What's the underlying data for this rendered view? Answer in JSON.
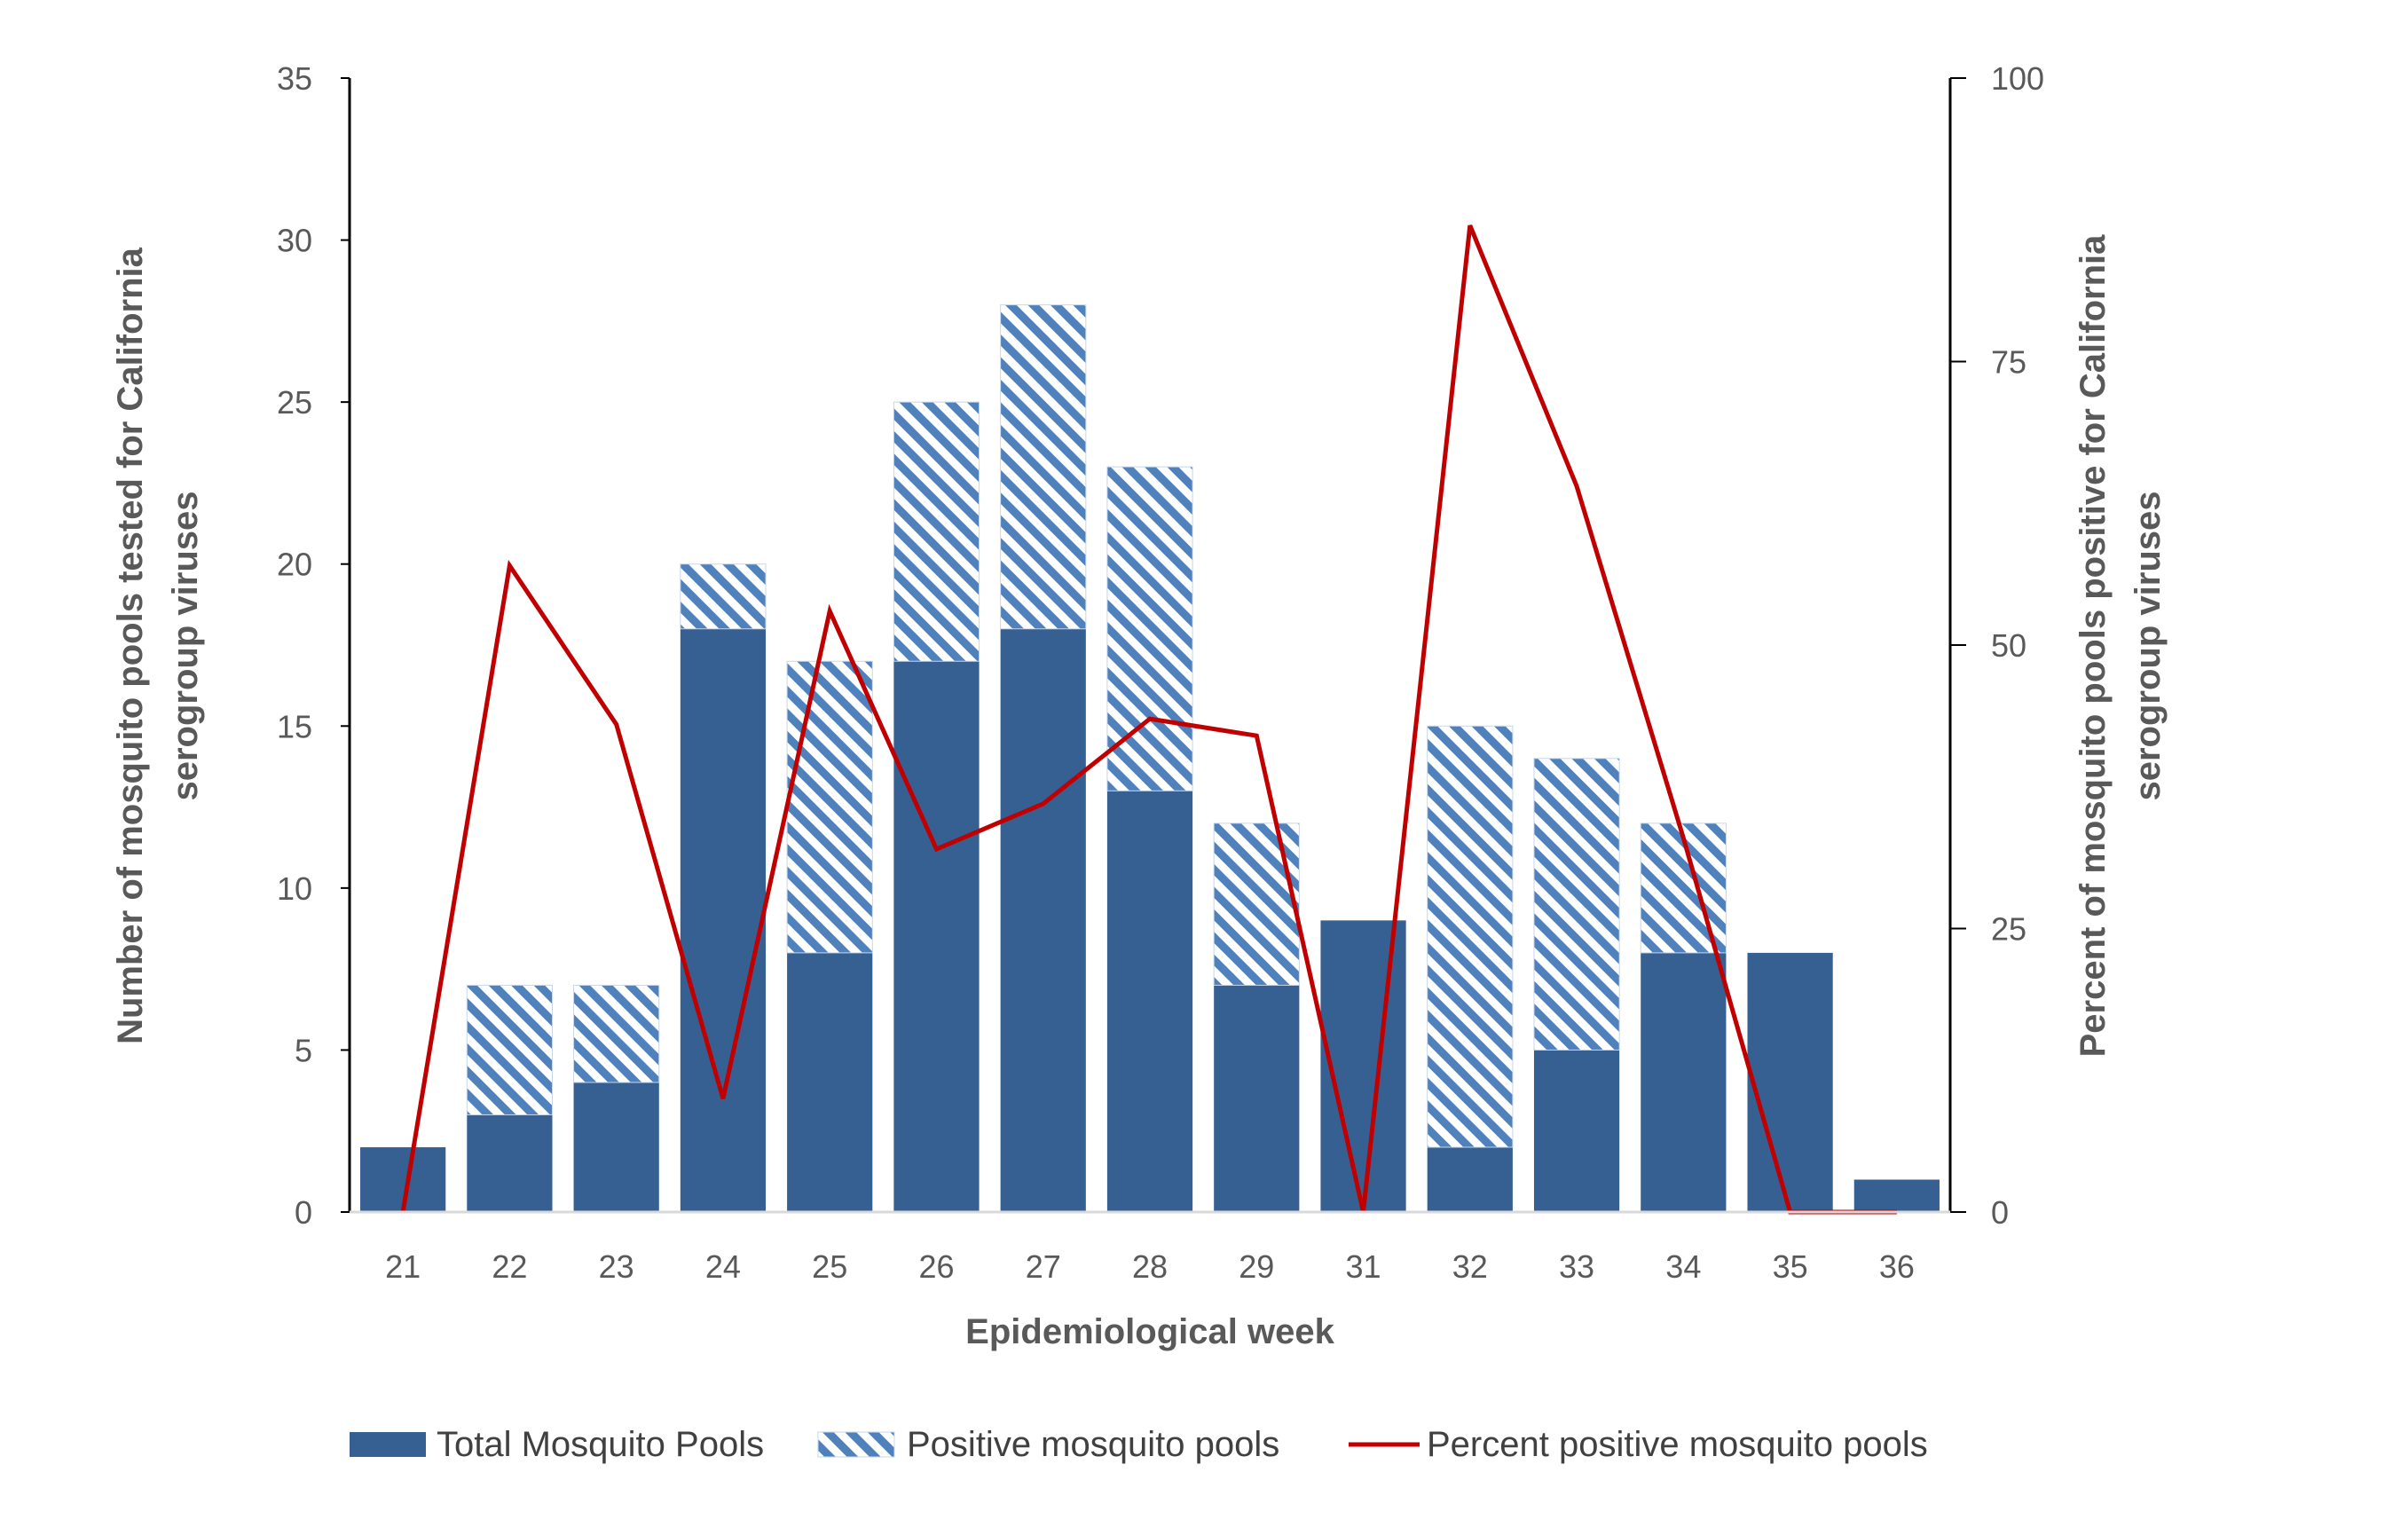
{
  "chart_data": {
    "type": "bar",
    "title": "",
    "xlabel": "Epidemiological week",
    "ylabel_left": "Number of mosquito pools tested for California serogroup viruses",
    "ylabel_left_lines": [
      "Number of mosquito pools tested for California",
      "serogroup viruses"
    ],
    "ylabel_right": "Percent of mosquito pools positive for California serogroup viruses",
    "ylabel_right_lines": [
      "Percent of mosquito pools positive for California",
      "serogroup viruses"
    ],
    "categories": [
      "21",
      "22",
      "23",
      "24",
      "25",
      "26",
      "27",
      "28",
      "29",
      "31",
      "32",
      "33",
      "34",
      "35",
      "36"
    ],
    "ylim_left": [
      0,
      35
    ],
    "yticks_left": [
      "0",
      "5",
      "10",
      "15",
      "20",
      "25",
      "30",
      "35"
    ],
    "ylim_right": [
      0,
      100
    ],
    "yticks_right": [
      "0",
      "25",
      "50",
      "75",
      "100"
    ],
    "series": [
      {
        "name": "Total Mosquito Pools",
        "type": "bar",
        "color": "#366092",
        "values": [
          2,
          3,
          4,
          18,
          8,
          17,
          18,
          13,
          7,
          9,
          2,
          5,
          8,
          8,
          1
        ]
      },
      {
        "name": "Positive mosquito pools",
        "type": "bar-hatched",
        "color": "#4F81BD",
        "values": [
          0,
          4,
          3,
          2,
          9,
          8,
          10,
          10,
          5,
          0,
          13,
          9,
          4,
          0,
          0
        ]
      },
      {
        "name": "Percent positive mosquito pools",
        "type": "line",
        "axis": "right",
        "color": "#C00000",
        "values": [
          0,
          57,
          43,
          10,
          53,
          32,
          36,
          43.5,
          42,
          0,
          87,
          64,
          33,
          0,
          0
        ]
      }
    ],
    "legend": {
      "position": "bottom",
      "items": [
        "Total Mosquito Pools",
        "Positive mosquito pools",
        "Percent positive mosquito pools"
      ]
    }
  }
}
